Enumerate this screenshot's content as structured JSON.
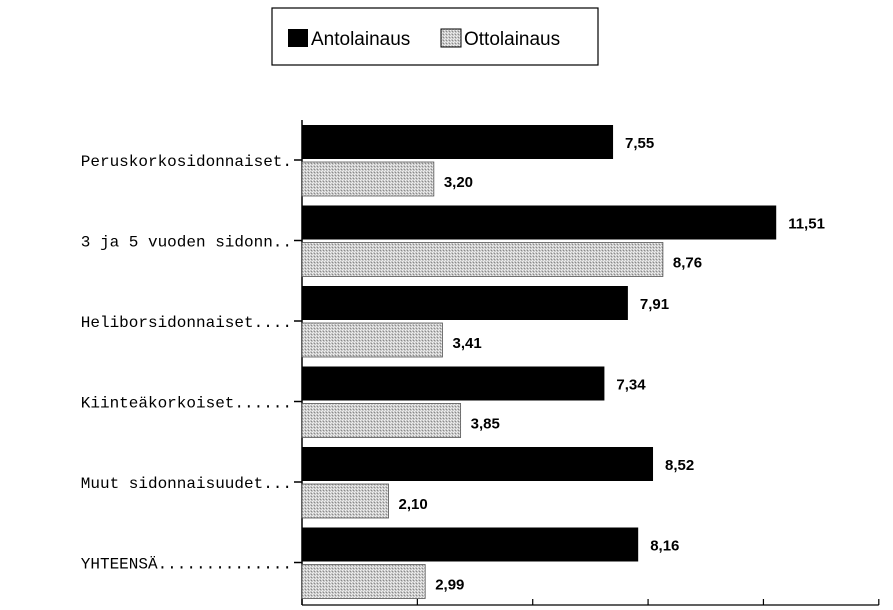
{
  "chart_data": {
    "type": "bar",
    "orientation": "horizontal",
    "categories": [
      "Peruskorkosidonnaiset.",
      "3 ja 5 vuoden sidonn..",
      "Heliborsidonnaiset....",
      "Kiinteäkorkoiset......",
      "Muut sidonnaisuudet...",
      "YHTEENSÄ.............."
    ],
    "series": [
      {
        "name": "Antolainaus",
        "color": "#000000",
        "values": [
          7.55,
          11.51,
          7.91,
          7.34,
          8.52,
          8.16
        ],
        "labels": [
          "7,55",
          "11,51",
          "7,91",
          "7,34",
          "8,52",
          "8,16"
        ]
      },
      {
        "name": "Ottolainaus",
        "color": "#d4d4d4",
        "pattern": "dotted-gray",
        "values": [
          3.2,
          8.76,
          3.41,
          3.85,
          2.1,
          2.99
        ],
        "labels": [
          "3,20",
          "8,76",
          "3,41",
          "3,85",
          "2,10",
          "2,99"
        ]
      }
    ],
    "xlim": [
      0,
      14
    ],
    "legend_position": "top-center",
    "grid": false
  }
}
